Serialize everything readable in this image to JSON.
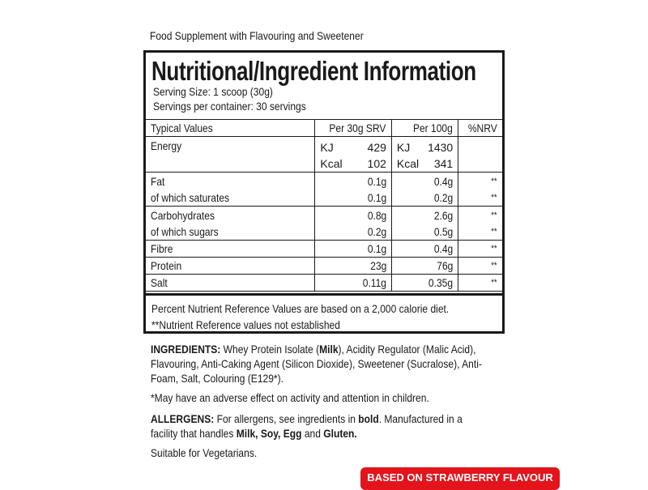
{
  "subtitle": "Food Supplement with Flavouring and Sweetener",
  "panel": {
    "title": "Nutritional/Ingredient Information",
    "serving_size": "Serving Size: 1 scoop (30g)",
    "servings_per_container": "Servings per container: 30 servings",
    "headers": [
      "Typical Values",
      "Per 30g SRV",
      "Per 100g",
      "%NRV"
    ],
    "energy": {
      "label": "Energy",
      "units": [
        "KJ",
        "Kcal"
      ],
      "per_serving": [
        "429",
        "102"
      ],
      "per_100g": [
        "1430",
        "341"
      ]
    },
    "rows": [
      {
        "lines": [
          {
            "label": "Fat",
            "srv": "0.1g",
            "p100": "0.4g",
            "nrv": "**"
          },
          {
            "label": "of which saturates",
            "srv": "0.1g",
            "p100": "0.2g",
            "nrv": "**"
          }
        ]
      },
      {
        "lines": [
          {
            "label": "Carbohydrates",
            "srv": "0.8g",
            "p100": "2.6g",
            "nrv": "**"
          },
          {
            "label": "of which sugars",
            "srv": "0.2g",
            "p100": "0.5g",
            "nrv": "**"
          }
        ]
      },
      {
        "lines": [
          {
            "label": "Fibre",
            "srv": "0.1g",
            "p100": "0.4g",
            "nrv": "**"
          }
        ]
      },
      {
        "lines": [
          {
            "label": "Protein",
            "srv": "23g",
            "p100": "76g",
            "nrv": "**"
          }
        ]
      },
      {
        "lines": [
          {
            "label": "Salt",
            "srv": "0.11g",
            "p100": "0.35g",
            "nrv": "**"
          }
        ]
      }
    ],
    "footnote1": "Percent Nutrient Reference Values are based on a 2,000 calorie diet.",
    "footnote2": "**Nutrient Reference values not established"
  },
  "ingredients": {
    "label": "INGREDIENTS:",
    "t1": " Whey Protein Isolate (",
    "b1": "Milk",
    "t2": "), Acidity Regulator (Malic Acid), Flavouring, Anti-Caking Agent (Silicon Dioxide), Sweetener (Sucralose), Anti-Foam, Salt, Colouring (E129*)."
  },
  "warning": "*May have an adverse effect on activity and attention in children.",
  "allergens": {
    "label": "ALLERGENS:",
    "t1": " For allergens, see ingredients in ",
    "b1": "bold",
    "t2": ". Manufactured in a facility that handles ",
    "b2": "Milk, Soy, Egg",
    "t3": " and ",
    "b3": "Gluten."
  },
  "vegetarian": "Suitable for Vegetarians.",
  "badge": {
    "label": "BASED ON STRAWBERRY FLAVOUR",
    "color": "#e3141b"
  }
}
